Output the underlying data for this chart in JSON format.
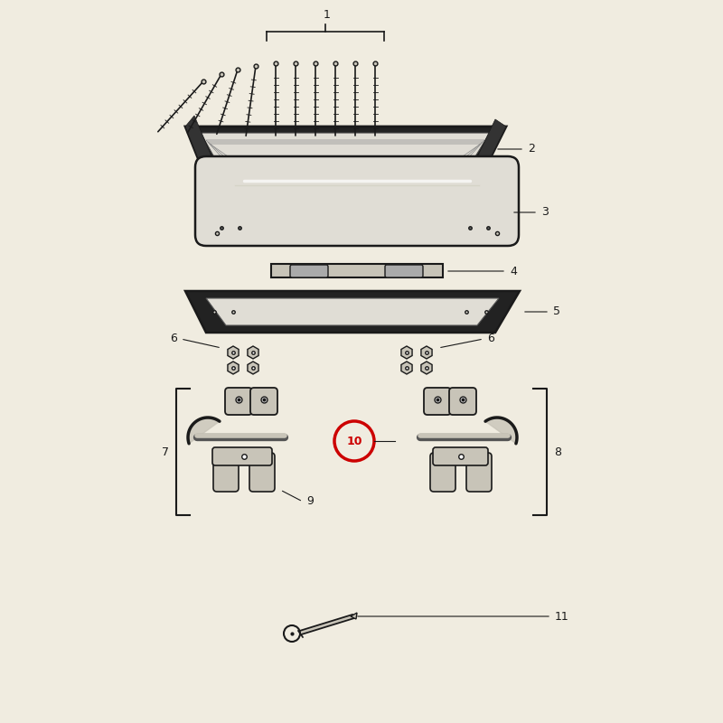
{
  "bg_color": "#f0ece0",
  "line_color": "#1a1a1a",
  "part_fill": "#c8c4b8",
  "part_fill_light": "#e0ddd5",
  "part_fill_dark": "#909088",
  "highlight_color": "#cc0000",
  "white": "#ffffff",
  "black": "#111111"
}
